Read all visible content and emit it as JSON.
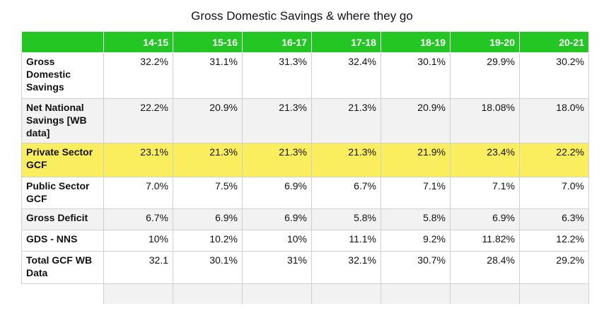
{
  "title": "Gross Domestic Savings & where they go",
  "colors": {
    "header_bg": "#23c623",
    "header_text": "#ffffff",
    "highlight_row": "#fbee5e",
    "shaded_row": "#f2f2f2"
  },
  "chart_data": {
    "type": "table",
    "title": "Gross Domestic Savings & where they go",
    "columns": [
      "14-15",
      "15-16",
      "16-17",
      "17-18",
      "18-19",
      "19-20",
      "20-21"
    ],
    "rows": [
      {
        "label": "Gross Domestic Savings",
        "values": [
          "32.2%",
          "31.1%",
          "31.3%",
          "32.4%",
          "30.1%",
          "29.9%",
          "30.2%"
        ]
      },
      {
        "label": "Net National Savings [WB data]",
        "values": [
          "22.2%",
          "20.9%",
          "21.3%",
          "21.3%",
          "20.9%",
          "18.08%",
          "18.0%"
        ]
      },
      {
        "label": "Private Sector GCF",
        "values": [
          "23.1%",
          "21.3%",
          "21.3%",
          "21.3%",
          "21.9%",
          "23.4%",
          "22.2%"
        ]
      },
      {
        "label": "Public Sector GCF",
        "values": [
          "7.0%",
          "7.5%",
          "6.9%",
          "6.7%",
          "7.1%",
          "7.1%",
          "7.0%"
        ]
      },
      {
        "label": "Gross Deficit",
        "values": [
          "6.7%",
          "6.9%",
          "6.9%",
          "5.8%",
          "5.8%",
          "6.9%",
          "6.3%"
        ]
      },
      {
        "label": "GDS - NNS",
        "values": [
          "10%",
          "10.2%",
          "10%",
          "11.1%",
          "9.2%",
          "11.82%",
          "12.2%"
        ]
      },
      {
        "label": "Total GCF WB Data",
        "values": [
          "32.1",
          "30.1%",
          "31%",
          "32.1%",
          "30.7%",
          "28.4%",
          "29.2%"
        ]
      }
    ],
    "highlighted_row": "Private Sector GCF"
  }
}
